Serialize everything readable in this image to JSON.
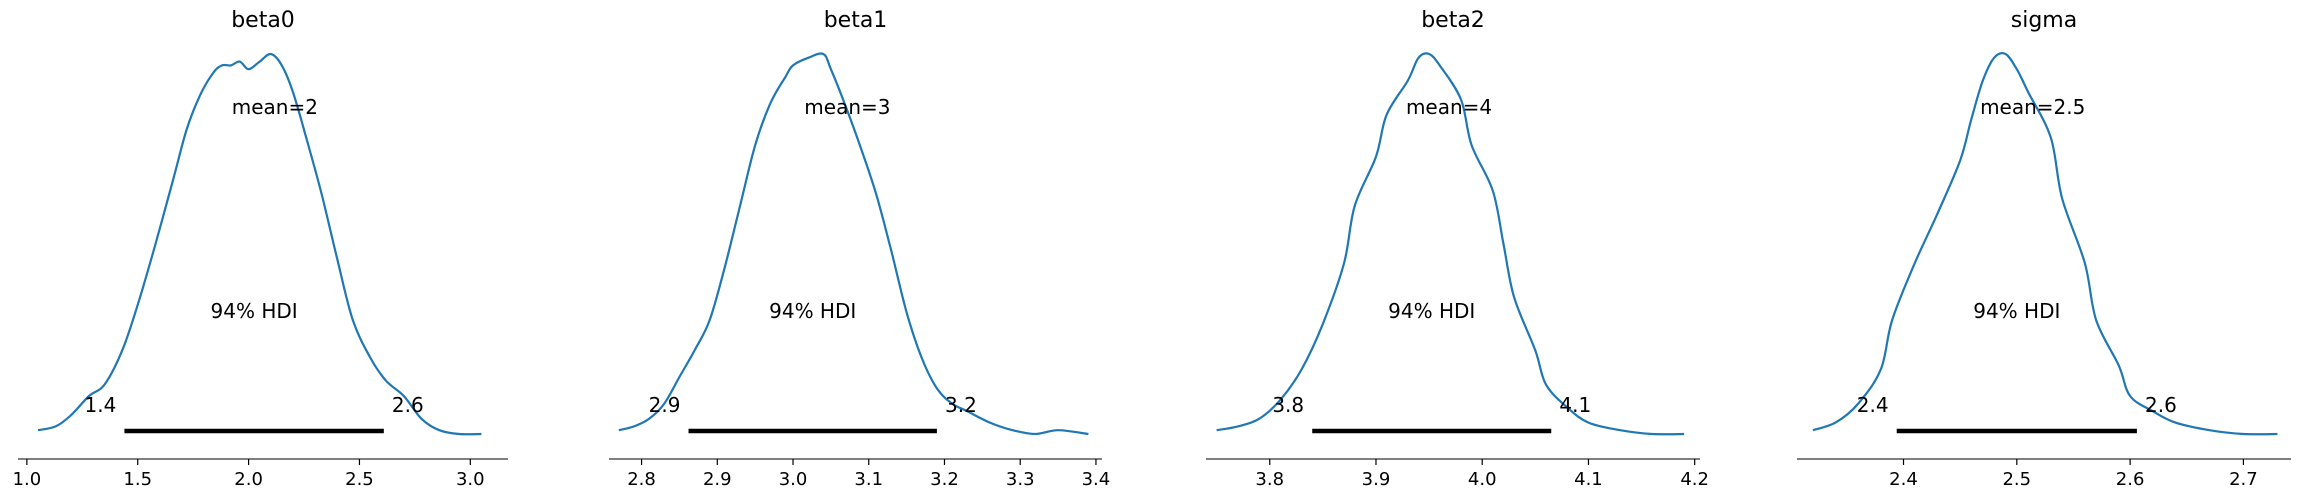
{
  "chart_data": [
    {
      "type": "area",
      "title": "beta0",
      "mean_label": "mean=2",
      "hdi_label": "94% HDI",
      "hdi": {
        "low": 1.44,
        "high": 2.61,
        "low_label": "1.4",
        "high_label": "2.6"
      },
      "xlim": [
        0.96,
        3.17
      ],
      "xticks": [
        1.0,
        1.5,
        2.0,
        2.5,
        3.0
      ],
      "xtick_labels": [
        "1.0",
        "1.5",
        "2.0",
        "2.5",
        "3.0"
      ],
      "x": [
        1.05,
        1.13,
        1.2,
        1.28,
        1.35,
        1.43,
        1.5,
        1.58,
        1.66,
        1.72,
        1.78,
        1.84,
        1.88,
        1.92,
        1.96,
        2.0,
        2.05,
        2.1,
        2.15,
        2.2,
        2.26,
        2.33,
        2.4,
        2.47,
        2.55,
        2.62,
        2.7,
        2.78,
        2.86,
        2.95,
        3.05
      ],
      "y": [
        0.01,
        0.02,
        0.05,
        0.1,
        0.13,
        0.22,
        0.34,
        0.5,
        0.67,
        0.8,
        0.89,
        0.95,
        0.97,
        0.97,
        0.98,
        0.96,
        0.98,
        1.0,
        0.97,
        0.9,
        0.78,
        0.63,
        0.46,
        0.3,
        0.2,
        0.14,
        0.1,
        0.04,
        0.01,
        0.0,
        0.0
      ]
    },
    {
      "type": "area",
      "title": "beta1",
      "mean_label": "mean=3",
      "hdi_label": "94% HDI",
      "hdi": {
        "low": 2.862,
        "high": 3.19,
        "low_label": "2.9",
        "high_label": "3.2"
      },
      "xlim": [
        2.757,
        3.408
      ],
      "xticks": [
        2.8,
        2.9,
        3.0,
        3.1,
        3.2,
        3.3,
        3.4
      ],
      "xtick_labels": [
        "2.8",
        "2.9",
        "3.0",
        "3.1",
        "3.2",
        "3.3",
        "3.4"
      ],
      "x": [
        2.77,
        2.79,
        2.81,
        2.83,
        2.85,
        2.87,
        2.89,
        2.91,
        2.93,
        2.95,
        2.97,
        2.99,
        3.0,
        3.02,
        3.04,
        3.05,
        3.07,
        3.09,
        3.11,
        3.13,
        3.15,
        3.17,
        3.19,
        3.21,
        3.23,
        3.26,
        3.29,
        3.32,
        3.35,
        3.39
      ],
      "y": [
        0.01,
        0.02,
        0.04,
        0.08,
        0.15,
        0.22,
        0.3,
        0.44,
        0.6,
        0.76,
        0.87,
        0.94,
        0.97,
        0.99,
        1.0,
        0.96,
        0.86,
        0.75,
        0.63,
        0.48,
        0.32,
        0.2,
        0.12,
        0.08,
        0.06,
        0.03,
        0.01,
        0.0,
        0.01,
        0.0
      ]
    },
    {
      "type": "area",
      "title": "beta2",
      "mean_label": "mean=4",
      "hdi_label": "94% HDI",
      "hdi": {
        "low": 3.84,
        "high": 4.065,
        "low_label": "3.8",
        "high_label": "4.1"
      },
      "xlim": [
        3.74,
        4.205
      ],
      "xticks": [
        3.8,
        3.9,
        4.0,
        4.1,
        4.2
      ],
      "xtick_labels": [
        "3.8",
        "3.9",
        "4.0",
        "4.1",
        "4.2"
      ],
      "x": [
        3.75,
        3.77,
        3.79,
        3.81,
        3.83,
        3.85,
        3.87,
        3.88,
        3.9,
        3.91,
        3.93,
        3.94,
        3.95,
        3.96,
        3.98,
        3.99,
        4.01,
        4.02,
        4.03,
        4.05,
        4.06,
        4.08,
        4.1,
        4.13,
        4.16,
        4.19
      ],
      "y": [
        0.01,
        0.02,
        0.04,
        0.09,
        0.17,
        0.29,
        0.45,
        0.6,
        0.73,
        0.84,
        0.93,
        0.99,
        1.0,
        0.97,
        0.88,
        0.76,
        0.64,
        0.5,
        0.36,
        0.22,
        0.13,
        0.07,
        0.03,
        0.01,
        0.0,
        0.0
      ]
    },
    {
      "type": "area",
      "title": "sigma",
      "mean_label": "mean=2.5",
      "hdi_label": "94% HDI",
      "hdi": {
        "low": 2.394,
        "high": 2.606,
        "low_label": "2.4",
        "high_label": "2.6"
      },
      "xlim": [
        2.306,
        2.742
      ],
      "xticks": [
        2.4,
        2.5,
        2.6,
        2.7
      ],
      "xtick_labels": [
        "2.4",
        "2.5",
        "2.6",
        "2.7"
      ],
      "x": [
        2.32,
        2.34,
        2.36,
        2.38,
        2.39,
        2.41,
        2.43,
        2.45,
        2.46,
        2.47,
        2.48,
        2.49,
        2.5,
        2.51,
        2.53,
        2.54,
        2.56,
        2.57,
        2.59,
        2.6,
        2.62,
        2.64,
        2.67,
        2.7,
        2.73
      ],
      "y": [
        0.01,
        0.03,
        0.08,
        0.17,
        0.3,
        0.45,
        0.58,
        0.72,
        0.83,
        0.93,
        0.99,
        1.0,
        0.96,
        0.9,
        0.78,
        0.62,
        0.45,
        0.3,
        0.18,
        0.1,
        0.06,
        0.03,
        0.01,
        0.0,
        0.0
      ]
    }
  ]
}
